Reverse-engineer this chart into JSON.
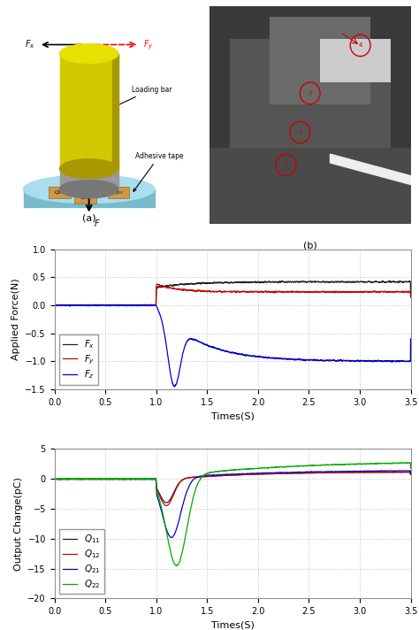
{
  "fig_width": 4.74,
  "fig_height": 7.12,
  "dpi": 100,
  "force_plot": {
    "xlim": [
      0,
      3.5
    ],
    "ylim": [
      -1.5,
      1.0
    ],
    "xticks": [
      0,
      0.5,
      1.0,
      1.5,
      2.0,
      2.5,
      3.0,
      3.5
    ],
    "yticks": [
      -1.5,
      -1.0,
      -0.5,
      0.0,
      0.5,
      1.0
    ],
    "xlabel": "Times(S)",
    "ylabel": "Applied Force(N)",
    "grid_color": "#bbbbbb",
    "bg_color": "#ffffff",
    "Fx_color": "#222222",
    "Fy_color": "#cc0000",
    "Fz_color": "#0000cc"
  },
  "charge_plot": {
    "xlim": [
      0,
      3.5
    ],
    "ylim": [
      -20,
      5
    ],
    "xticks": [
      0,
      0.5,
      1.0,
      1.5,
      2.0,
      2.5,
      3.0,
      3.5
    ],
    "yticks": [
      -20,
      -15,
      -10,
      -5,
      0,
      5
    ],
    "xlabel": "Times(S)",
    "ylabel": "Output Charge(pC)",
    "grid_color": "#bbbbbb",
    "bg_color": "#ffffff",
    "Q11_color": "#222222",
    "Q12_color": "#cc0000",
    "Q21_color": "#0000cc",
    "Q22_color": "#00aa00"
  },
  "cyl_color_body": "#d4c800",
  "cyl_color_top": "#e8e000",
  "cyl_color_dark": "#a89800",
  "tape_color_top": "#aaddee",
  "tape_color_side": "#77bbcc",
  "grey_color": "#888888"
}
